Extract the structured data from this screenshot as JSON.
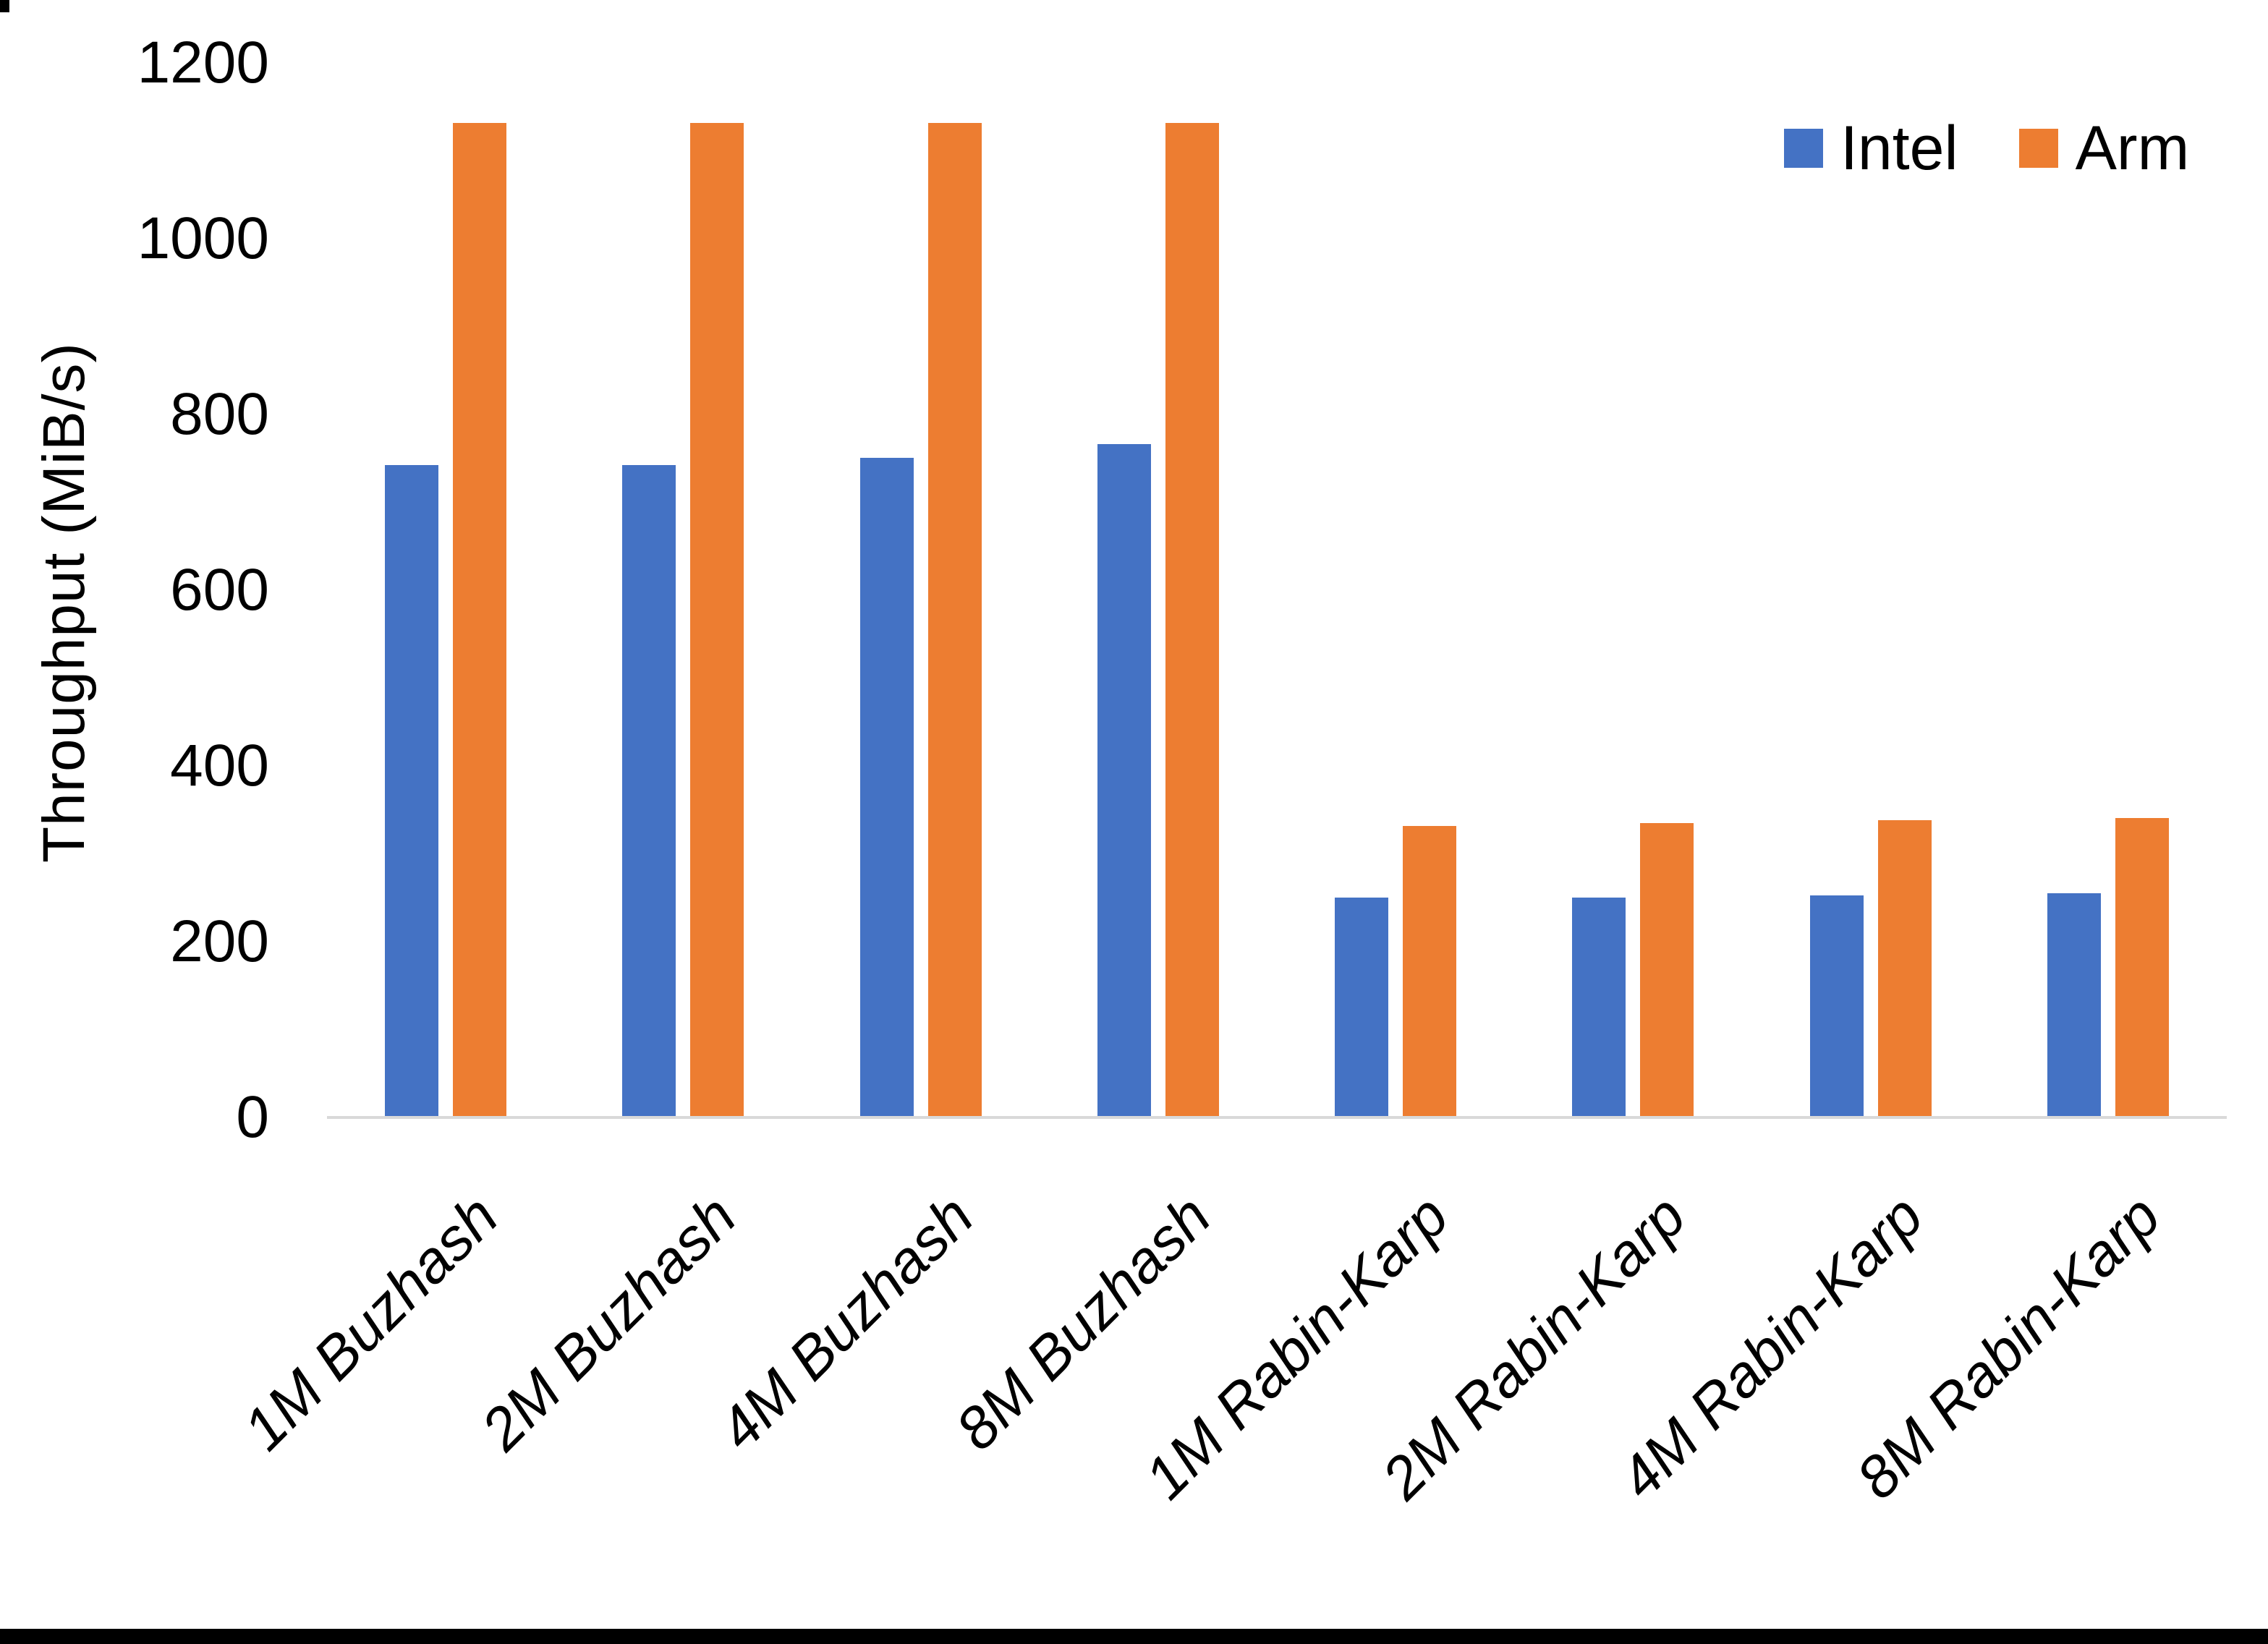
{
  "chart_data": {
    "type": "bar",
    "title": "",
    "xlabel": "",
    "ylabel": "Throughput (MiB/s)",
    "ylim": [
      0,
      1200
    ],
    "y_ticks": [
      0,
      200,
      400,
      600,
      800,
      1000,
      1200
    ],
    "grid": false,
    "legend_position": "top-right",
    "categories": [
      "1M Buzhash",
      "2M Buzhash",
      "4M Buzhash",
      "8M Buzhash",
      "1M Rabin-Karp",
      "2M Rabin-Karp",
      "4M Rabin-Karp",
      "8M Rabin-Karp"
    ],
    "series": [
      {
        "name": "Intel",
        "color": "#4472C4",
        "values": [
          742,
          742,
          751,
          766,
          250,
          250,
          253,
          255
        ]
      },
      {
        "name": "Arm",
        "color": "#ED7D31",
        "values": [
          1132,
          1132,
          1132,
          1132,
          332,
          335,
          338,
          341
        ]
      }
    ]
  },
  "colors": {
    "background": "#FFFFFF",
    "axis_line": "#D9D9D9",
    "text": "#000000",
    "bottom_border": "#000000",
    "corner_artifact": "#000000"
  }
}
